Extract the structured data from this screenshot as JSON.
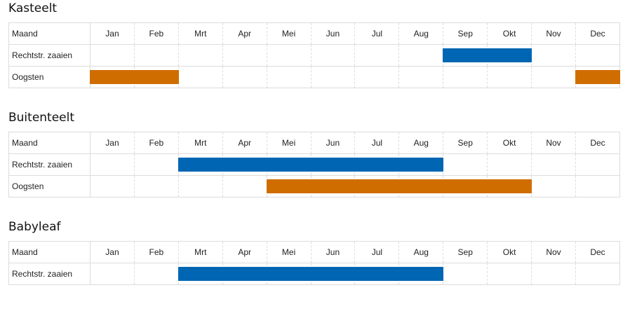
{
  "months": [
    "Jan",
    "Feb",
    "Mrt",
    "Apr",
    "Mei",
    "Jun",
    "Jul",
    "Aug",
    "Sep",
    "Okt",
    "Nov",
    "Dec"
  ],
  "colors": {
    "sow": "#0066b3",
    "harvest": "#d06d00"
  },
  "sections": [
    {
      "title": "Kasteelt",
      "header_label": "Maand",
      "rows": [
        {
          "label": "Rechtstr. zaaien",
          "type": "sow",
          "months_active": [
            "Sep",
            "Okt"
          ]
        },
        {
          "label": "Oogsten",
          "type": "harvest",
          "months_active": [
            "Jan",
            "Feb",
            "Dec"
          ]
        }
      ]
    },
    {
      "title": "Buitenteelt",
      "header_label": "Maand",
      "rows": [
        {
          "label": "Rechtstr. zaaien",
          "type": "sow",
          "months_active": [
            "Mrt",
            "Apr",
            "Mei",
            "Jun",
            "Jul",
            "Aug"
          ]
        },
        {
          "label": "Oogsten",
          "type": "harvest",
          "months_active": [
            "Mei",
            "Jun",
            "Jul",
            "Aug",
            "Sep",
            "Okt"
          ]
        }
      ]
    },
    {
      "title": "Babyleaf",
      "header_label": "Maand",
      "rows": [
        {
          "label": "Rechtstr. zaaien",
          "type": "sow",
          "months_active": [
            "Mrt",
            "Apr",
            "Mei",
            "Jun",
            "Jul",
            "Aug"
          ]
        }
      ]
    }
  ]
}
